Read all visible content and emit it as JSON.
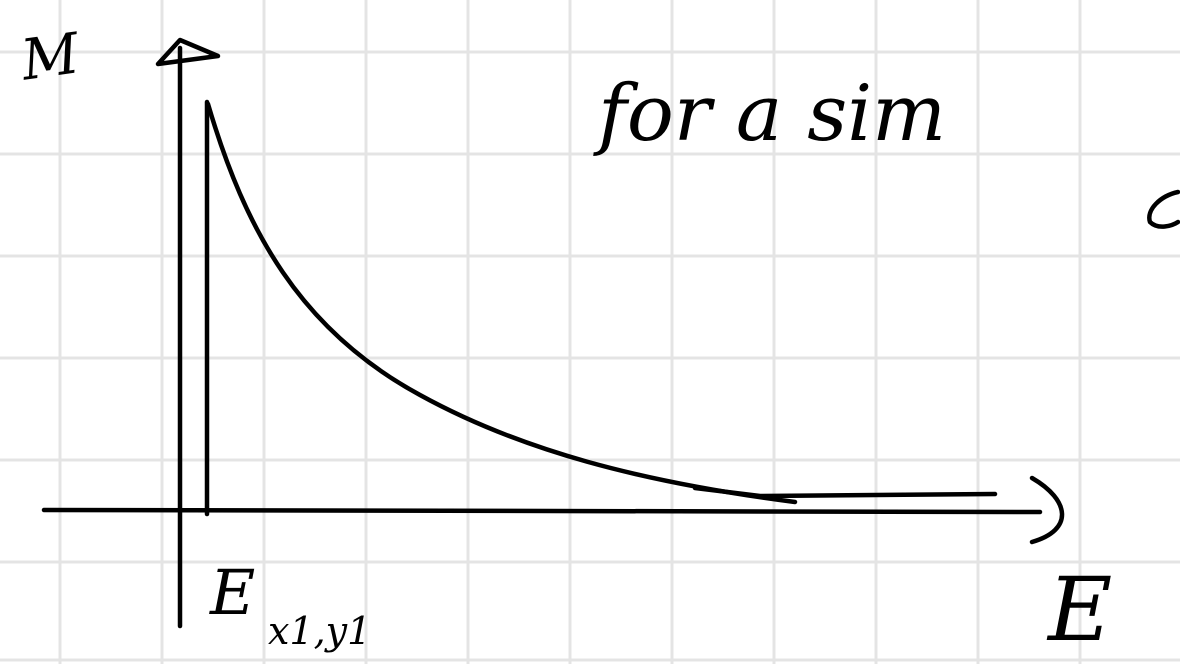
{
  "note": {
    "y_axis_label": "M",
    "x_axis_label": "E",
    "curve_start_label_main": "E",
    "curve_start_label_subscript": "x1,y1",
    "handwritten_note": "for a sim"
  },
  "colors": {
    "background": "#ffffff",
    "grid": "#e4e4e4",
    "ink": "#000000"
  }
}
